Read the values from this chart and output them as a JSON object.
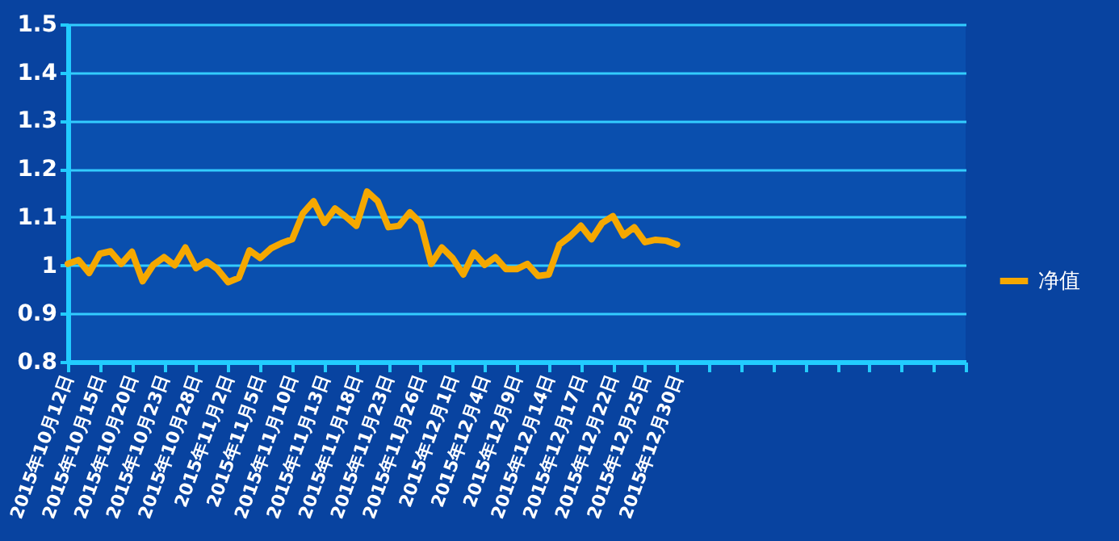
{
  "chart_data": {
    "type": "line",
    "categories": [
      "2015年10月12日",
      null,
      null,
      "2015年10月15日",
      null,
      null,
      "2015年10月20日",
      null,
      null,
      "2015年10月23日",
      null,
      null,
      "2015年10月28日",
      null,
      null,
      "2015年11月2日",
      null,
      null,
      "2015年11月5日",
      null,
      null,
      "2015年11月10日",
      null,
      null,
      "2015年11月13日",
      null,
      null,
      "2015年11月18日",
      null,
      null,
      "2015年11月23日",
      null,
      null,
      "2015年11月26日",
      null,
      null,
      "2015年12月1日",
      null,
      null,
      "2015年12月4日",
      null,
      null,
      "2015年12月9日",
      null,
      null,
      "2015年12月14日",
      null,
      null,
      "2015年12月17日",
      null,
      null,
      "2015年12月22日",
      null,
      null,
      "2015年12月25日",
      null,
      null,
      "2015年12月30日",
      null,
      null,
      null,
      null,
      null,
      null,
      null,
      null,
      null,
      null,
      null,
      null,
      null,
      null,
      null,
      null,
      null,
      null,
      null,
      null,
      null,
      null,
      null,
      null,
      null,
      null,
      null
    ],
    "series": [
      {
        "name": "净值",
        "color": "#f5a800",
        "values": [
          1.003,
          1.011,
          0.984,
          1.024,
          1.029,
          1.003,
          1.028,
          0.967,
          1.001,
          1.017,
          1.0,
          1.037,
          0.994,
          1.008,
          0.992,
          0.965,
          0.974,
          1.031,
          1.015,
          1.035,
          1.046,
          1.054,
          1.108,
          1.133,
          1.088,
          1.118,
          1.101,
          1.082,
          1.153,
          1.133,
          1.079,
          1.082,
          1.11,
          1.088,
          1.003,
          1.037,
          1.015,
          0.981,
          1.026,
          1.001,
          1.017,
          0.992,
          0.992,
          1.003,
          0.978,
          0.981,
          1.043,
          1.06,
          1.082,
          1.054,
          1.088,
          1.102,
          1.062,
          1.079,
          1.048,
          1.053,
          1.051,
          1.043,
          null,
          null,
          null,
          null,
          null,
          null,
          null,
          null,
          null,
          null,
          null,
          null,
          null,
          null,
          null,
          null,
          null,
          null,
          null,
          null,
          null,
          null,
          null,
          null,
          null,
          null,
          null
        ]
      }
    ],
    "ylim": [
      0.8,
      1.5
    ],
    "yticks": [
      0.8,
      0.9,
      1,
      1.1,
      1.2,
      1.3,
      1.4,
      1.5
    ],
    "grid": "y",
    "legend": "right"
  }
}
